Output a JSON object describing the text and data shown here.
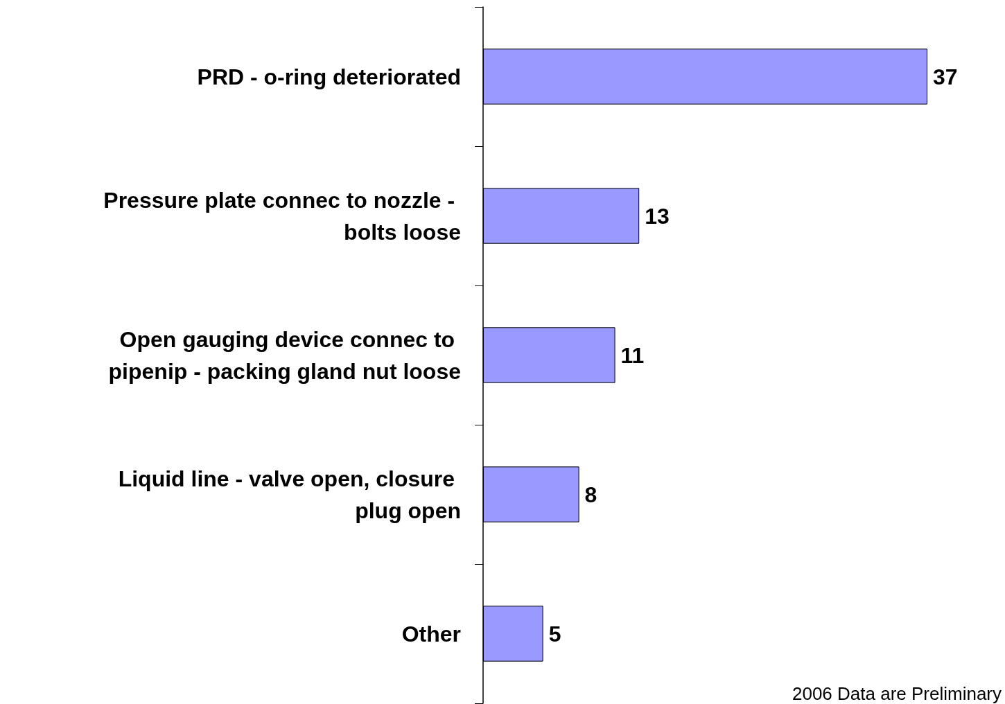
{
  "chart_data": {
    "type": "bar",
    "orientation": "horizontal",
    "categories": [
      "PRD - o-ring deteriorated",
      "Pressure plate connec to nozzle - bolts loose",
      "Open gauging device connec to pipenip - packing gland nut loose",
      "Liquid line - valve open, closure plug open",
      "Other"
    ],
    "values": [
      37,
      13,
      11,
      8,
      5
    ],
    "color": "#9999ff",
    "data_labels": true,
    "annotations": [
      "2006 Data are Preliminary"
    ]
  }
}
